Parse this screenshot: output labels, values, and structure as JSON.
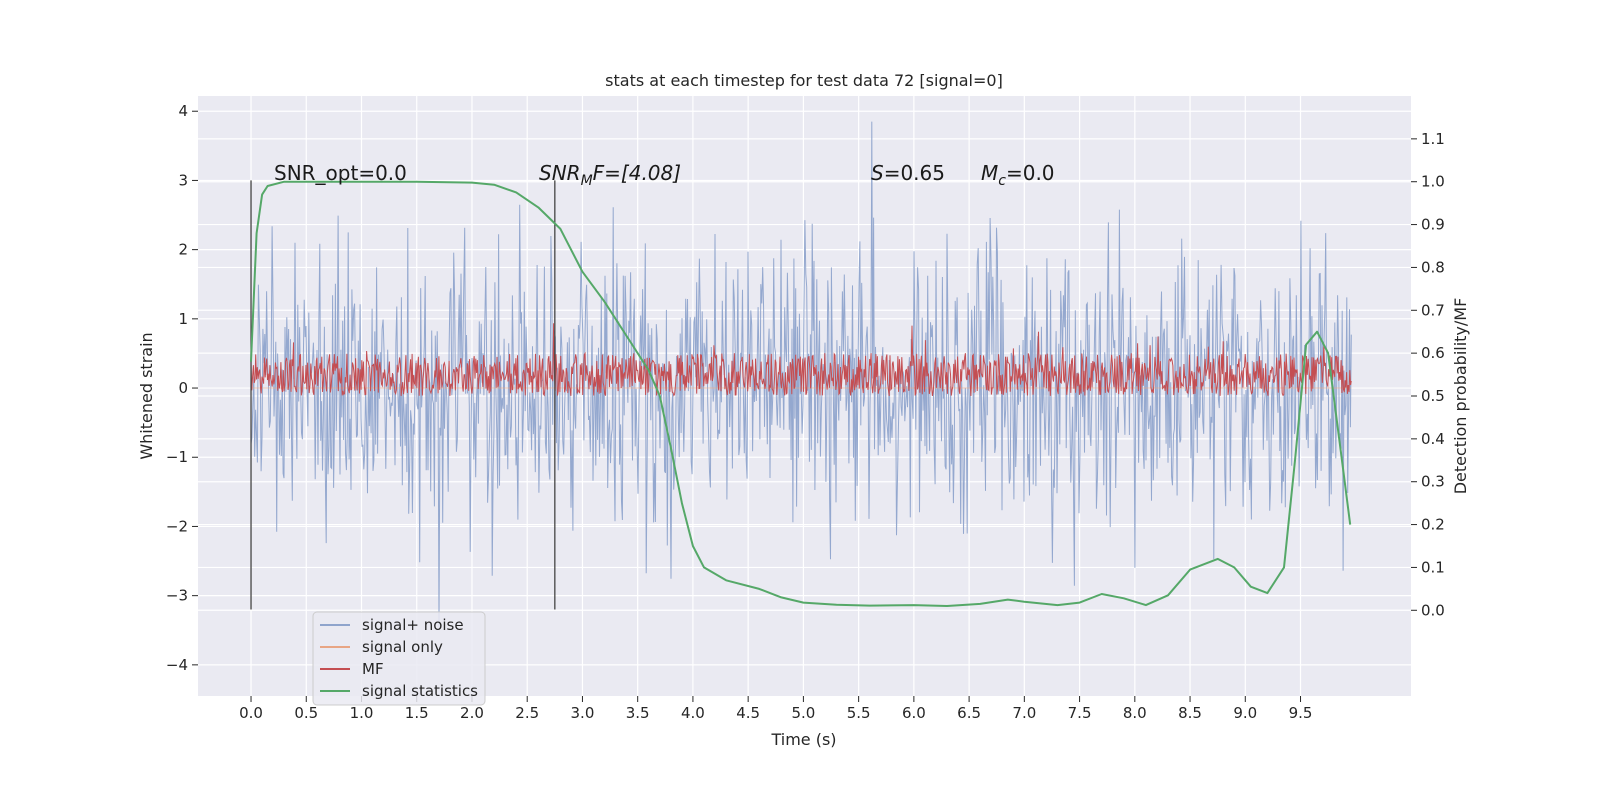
{
  "chart_data": {
    "type": "line",
    "title": "stats at each timestep for test data 72 [signal=0]",
    "xlabel": "Time (s)",
    "ylabel_left": "Whitened strain",
    "ylabel_right": "Detection probability/MF",
    "xlim": [
      -0.48,
      10.5
    ],
    "ylim_left": [
      -4.45,
      4.22
    ],
    "ylim_right": [
      -0.2,
      1.2
    ],
    "x_ticks": [
      "0.0",
      "0.5",
      "1.0",
      "1.5",
      "2.0",
      "2.5",
      "3.0",
      "3.5",
      "4.0",
      "4.5",
      "5.0",
      "5.5",
      "6.0",
      "6.5",
      "7.0",
      "7.5",
      "8.0",
      "8.5",
      "9.0",
      "9.5"
    ],
    "y_left_ticks": [
      "−4",
      "−3",
      "−2",
      "−1",
      "0",
      "1",
      "2",
      "3",
      "4"
    ],
    "y_right_ticks": [
      "0.0",
      "0.1",
      "0.2",
      "0.3",
      "0.4",
      "0.5",
      "0.6",
      "0.7",
      "0.8",
      "0.9",
      "1.0",
      "1.1"
    ],
    "grid": true,
    "legend_position": "lower-left",
    "annotations": {
      "snr_opt": "SNR_opt=0.0",
      "snr_mf_base": "SNR",
      "snr_mf_sub": "M",
      "snr_mf_rest": "F=[4.08]",
      "s_label": "S",
      "s_value": "=0.65",
      "mc_label": "M",
      "mc_sub": "c",
      "mc_value": "=0.0"
    },
    "vlines_x": [
      0.0,
      2.75
    ],
    "series": [
      {
        "name": "signal+ noise",
        "color": "#8fa4cc",
        "axis": "left",
        "x_range": [
          0.0,
          9.96
        ],
        "envelope_typical": [
          -2.0,
          2.3
        ],
        "extremes": [
          -4.0,
          3.85
        ]
      },
      {
        "name": "signal only",
        "color": "#e8a584",
        "axis": "left",
        "values_note": "",
        "x_range": [
          0.0,
          9.96
        ],
        "constant_value": 0.0
      },
      {
        "name": "MF",
        "color": "#c44e52",
        "axis": "right",
        "x_range": [
          0.0,
          9.96
        ],
        "band": [
          0.5,
          0.6
        ],
        "peaks_max": 0.67
      },
      {
        "name": "signal statistics",
        "color": "#55a868",
        "axis": "right",
        "points": [
          [
            0.0,
            0.58
          ],
          [
            0.05,
            0.88
          ],
          [
            0.1,
            0.97
          ],
          [
            0.15,
            0.99
          ],
          [
            0.3,
            1.0
          ],
          [
            0.6,
            1.0
          ],
          [
            1.0,
            1.0
          ],
          [
            1.5,
            1.0
          ],
          [
            2.0,
            0.998
          ],
          [
            2.2,
            0.993
          ],
          [
            2.4,
            0.975
          ],
          [
            2.6,
            0.94
          ],
          [
            2.8,
            0.89
          ],
          [
            3.0,
            0.79
          ],
          [
            3.2,
            0.72
          ],
          [
            3.4,
            0.64
          ],
          [
            3.6,
            0.56
          ],
          [
            3.7,
            0.5
          ],
          [
            3.8,
            0.38
          ],
          [
            3.9,
            0.25
          ],
          [
            4.0,
            0.15
          ],
          [
            4.1,
            0.1
          ],
          [
            4.3,
            0.07
          ],
          [
            4.6,
            0.05
          ],
          [
            4.8,
            0.03
          ],
          [
            5.0,
            0.018
          ],
          [
            5.3,
            0.013
          ],
          [
            5.6,
            0.011
          ],
          [
            6.0,
            0.012
          ],
          [
            6.3,
            0.01
          ],
          [
            6.6,
            0.015
          ],
          [
            6.85,
            0.025
          ],
          [
            7.0,
            0.02
          ],
          [
            7.3,
            0.012
          ],
          [
            7.5,
            0.018
          ],
          [
            7.7,
            0.038
          ],
          [
            7.9,
            0.028
          ],
          [
            8.1,
            0.012
          ],
          [
            8.3,
            0.035
          ],
          [
            8.5,
            0.095
          ],
          [
            8.75,
            0.12
          ],
          [
            8.9,
            0.1
          ],
          [
            9.05,
            0.055
          ],
          [
            9.2,
            0.04
          ],
          [
            9.35,
            0.1
          ],
          [
            9.45,
            0.35
          ],
          [
            9.55,
            0.62
          ],
          [
            9.65,
            0.65
          ],
          [
            9.75,
            0.6
          ],
          [
            9.85,
            0.4
          ],
          [
            9.95,
            0.2
          ]
        ]
      }
    ]
  }
}
